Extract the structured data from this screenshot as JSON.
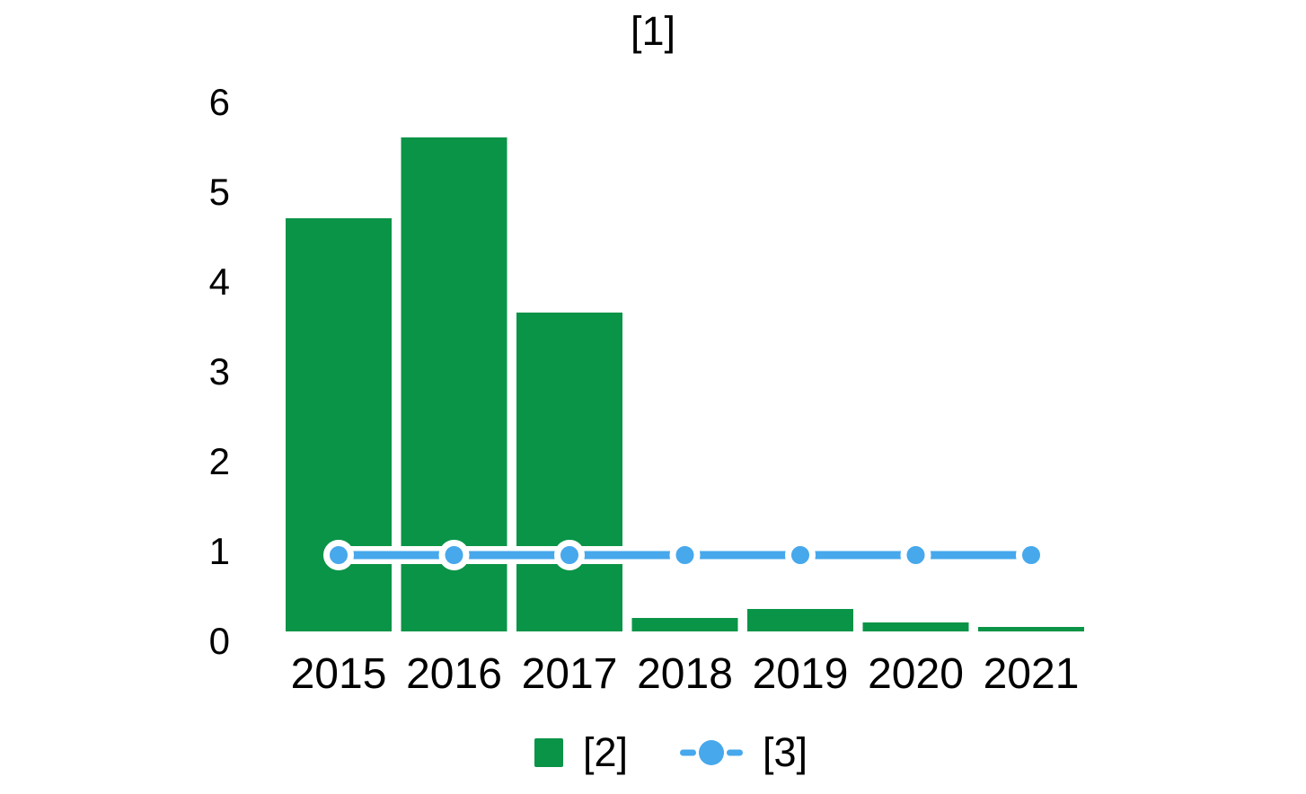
{
  "chart_data": {
    "type": "bar",
    "title": "[1]",
    "categories": [
      "2015",
      "2016",
      "2017",
      "2018",
      "2019",
      "2020",
      "2021"
    ],
    "series": [
      {
        "name": "[2]",
        "type": "bar",
        "color": "#0a9447",
        "values": [
          4.7,
          5.6,
          3.65,
          0.25,
          0.35,
          0.2,
          0.15
        ]
      },
      {
        "name": "[3]",
        "type": "line",
        "color": "#47a8ec",
        "marker": "circle",
        "marker_edge_color": "#ffffff",
        "values": [
          0.95,
          0.95,
          0.95,
          0.95,
          0.95,
          0.95,
          0.95
        ]
      }
    ],
    "xlabel": "",
    "ylabel": "",
    "ylim": [
      0,
      6
    ],
    "yticks": [
      0,
      1,
      2,
      3,
      4,
      5,
      6
    ],
    "grid": false,
    "axis_lines": false,
    "legend_position": "bottom",
    "text_color": "#000000",
    "background_color": "#ffffff"
  }
}
